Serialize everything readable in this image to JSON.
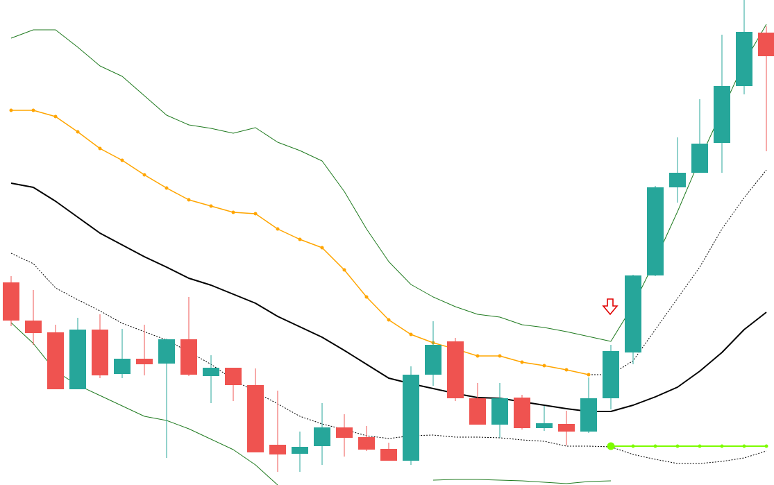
{
  "chart_data": {
    "type": "candlestick",
    "ylim": [
      0,
      699
    ],
    "up_color": "#26a69a",
    "down_color": "#ef5350",
    "open": [
      292,
      237,
      220,
      138,
      224,
      160,
      182,
      175,
      210,
      157,
      169,
      144,
      58,
      45,
      56,
      83,
      69,
      52,
      35,
      159,
      207,
      125,
      87,
      126,
      82,
      88,
      77,
      125,
      191,
      302,
      429,
      450,
      493,
      575,
      652
    ],
    "high": [
      301,
      281,
      231,
      241,
      246,
      225,
      231,
      211,
      271,
      187,
      169,
      168,
      136,
      77,
      118,
      102,
      85,
      61,
      171,
      236,
      212,
      147,
      147,
      130,
      114,
      107,
      155,
      202,
      303,
      431,
      501,
      556,
      649,
      699,
      661
    ],
    "low": [
      229,
      202,
      138,
      138,
      154,
      154,
      158,
      39,
      157,
      118,
      121,
      47,
      19,
      19,
      29,
      41,
      49,
      35,
      29,
      143,
      121,
      87,
      68,
      80,
      78,
      57,
      75,
      109,
      174,
      301,
      407,
      450,
      450,
      563,
      481
    ],
    "close": [
      237,
      219,
      138,
      224,
      158,
      182,
      174,
      210,
      159,
      169,
      144,
      47,
      44,
      55,
      83,
      68,
      51,
      35,
      159,
      202,
      125,
      87,
      125,
      82,
      89,
      77,
      125,
      193,
      302,
      429,
      450,
      492,
      575,
      653,
      618
    ],
    "lines": [
      {
        "color": "#1f7a1f",
        "width": 1,
        "style": "solid",
        "markers": false,
        "values": [
          644,
          656,
          656,
          631,
          604,
          589,
          561,
          533,
          519,
          514,
          507,
          515,
          494,
          482,
          467,
          423,
          369,
          322,
          289,
          271,
          257,
          246,
          242,
          231,
          227,
          221,
          214,
          207,
          259,
          324,
          394,
          469,
          539,
          609,
          664
        ]
      },
      {
        "color": "#1f7a1f",
        "width": 1,
        "style": "solid",
        "markers": false,
        "values": [
          234,
          204,
          164,
          144,
          129,
          114,
          99,
          93,
          81,
          66,
          51,
          29,
          0,
          null,
          null,
          null,
          null,
          null,
          null,
          7,
          8,
          8,
          7,
          6,
          4,
          2,
          5,
          6,
          null,
          null,
          null,
          null,
          null,
          null,
          null
        ]
      },
      {
        "color": "#000000",
        "width": 1,
        "style": "dotted",
        "markers": false,
        "values": [
          334,
          319,
          284,
          267,
          251,
          233,
          221,
          209,
          192,
          174,
          152,
          134,
          117,
          99,
          88,
          80,
          71,
          67,
          71,
          72,
          69,
          69,
          68,
          65,
          63,
          56,
          56,
          55,
          44,
          37,
          31,
          31,
          34,
          39,
          49
        ]
      },
      {
        "color": "#000000",
        "width": 1,
        "style": "dotted",
        "markers": false,
        "values": [
          null,
          null,
          null,
          null,
          null,
          null,
          null,
          null,
          null,
          null,
          null,
          null,
          null,
          null,
          null,
          null,
          null,
          null,
          null,
          null,
          null,
          null,
          null,
          null,
          null,
          null,
          159,
          159,
          179,
          224,
          269,
          314,
          369,
          414,
          454
        ]
      },
      {
        "color": "#000000",
        "width": 2,
        "style": "solid",
        "markers": false,
        "values": [
          435,
          429,
          409,
          386,
          363,
          346,
          329,
          314,
          298,
          288,
          275,
          262,
          243,
          228,
          213,
          194,
          174,
          154,
          146,
          139,
          132,
          126,
          125,
          120,
          115,
          110,
          106,
          106,
          115,
          127,
          141,
          164,
          191,
          224,
          249
        ]
      },
      {
        "color": "#ffa500",
        "width": 1.5,
        "style": "solid",
        "markers": true,
        "values": [
          540,
          540,
          531,
          509,
          485,
          468,
          447,
          428,
          411,
          402,
          393,
          391,
          369,
          354,
          342,
          310,
          271,
          238,
          217,
          205,
          196,
          186,
          186,
          177,
          172,
          166,
          159,
          null,
          null,
          null,
          null,
          null,
          null,
          null,
          null
        ]
      },
      {
        "color": "#7cfc00",
        "width": 2,
        "style": "solid",
        "markers": true,
        "lead_marker": true,
        "values": [
          null,
          null,
          null,
          null,
          null,
          null,
          null,
          null,
          null,
          null,
          null,
          null,
          null,
          null,
          null,
          null,
          null,
          null,
          null,
          null,
          null,
          null,
          null,
          null,
          null,
          null,
          null,
          56,
          56,
          56,
          56,
          56,
          56,
          56,
          56
        ]
      }
    ]
  }
}
